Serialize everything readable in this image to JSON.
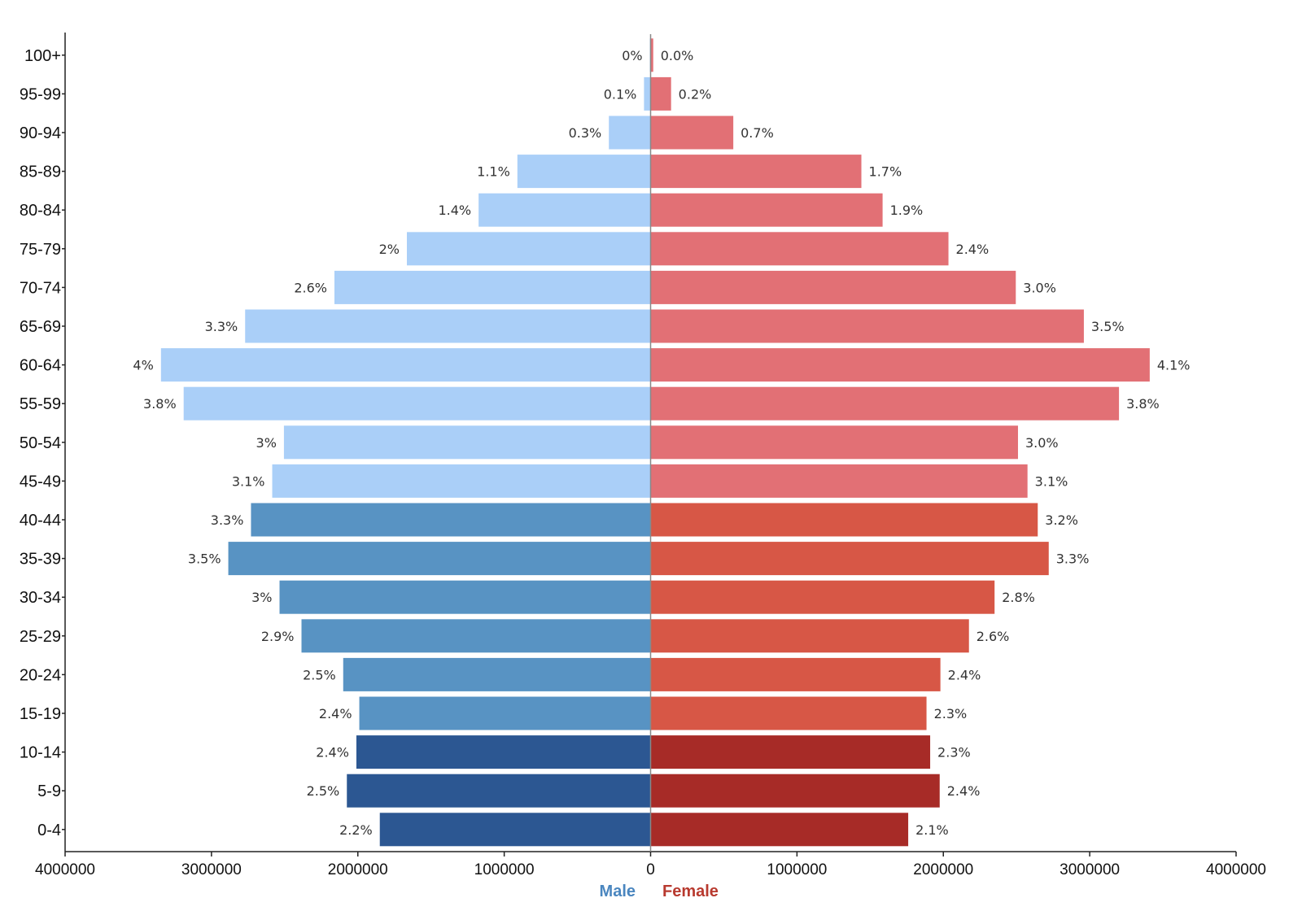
{
  "chart_data": {
    "type": "bar",
    "orientation": "horizontal",
    "title": "",
    "categories": [
      "100+",
      "95-99",
      "90-94",
      "85-89",
      "80-84",
      "75-79",
      "70-74",
      "65-69",
      "60-64",
      "55-59",
      "50-54",
      "45-49",
      "40-44",
      "35-39",
      "30-34",
      "25-29",
      "20-24",
      "15-19",
      "10-14",
      "5-9",
      "0-4"
    ],
    "xlim": [
      -4000000,
      4000000
    ],
    "x_ticks": [
      "4000000",
      "3000000",
      "2000000",
      "1000000",
      "0",
      "1000000",
      "2000000",
      "3000000",
      "4000000"
    ],
    "legend": [
      {
        "name": "Male",
        "color": "#4a86bf"
      },
      {
        "name": "Female",
        "color": "#b83a2f"
      }
    ],
    "series": [
      {
        "name": "Male",
        "values": [
          5000,
          45000,
          285000,
          910000,
          1175000,
          1665000,
          2160000,
          2770000,
          3345000,
          3190000,
          2505000,
          2585000,
          2730000,
          2885000,
          2535000,
          2385000,
          2100000,
          1990000,
          2010000,
          2075000,
          1850000
        ],
        "labels": [
          "0%",
          "0.1%",
          "0.3%",
          "1.1%",
          "1.4%",
          "2%",
          "2.6%",
          "3.3%",
          "4%",
          "3.8%",
          "3%",
          "3.1%",
          "3.3%",
          "3.5%",
          "3%",
          "2.9%",
          "2.5%",
          "2.4%",
          "2.4%",
          "2.5%",
          "2.2%"
        ],
        "colors": [
          "#aacff8",
          "#aacff8",
          "#aacff8",
          "#aacff8",
          "#aacff8",
          "#aacff8",
          "#aacff8",
          "#aacff8",
          "#aacff8",
          "#aacff8",
          "#aacff8",
          "#aacff8",
          "#5893c3",
          "#5893c3",
          "#5893c3",
          "#5893c3",
          "#5893c3",
          "#5893c3",
          "#2c5792",
          "#2c5792",
          "#2c5792"
        ]
      },
      {
        "name": "Female",
        "values": [
          18000,
          140000,
          565000,
          1440000,
          1585000,
          2035000,
          2495000,
          2960000,
          3410000,
          3200000,
          2510000,
          2575000,
          2645000,
          2720000,
          2350000,
          2175000,
          1980000,
          1885000,
          1910000,
          1975000,
          1760000
        ],
        "labels": [
          "0.0%",
          "0.2%",
          "0.7%",
          "1.7%",
          "1.9%",
          "2.4%",
          "3.0%",
          "3.5%",
          "4.1%",
          "3.8%",
          "3.0%",
          "3.1%",
          "3.2%",
          "3.3%",
          "2.8%",
          "2.6%",
          "2.4%",
          "2.3%",
          "2.3%",
          "2.4%",
          "2.1%"
        ],
        "colors": [
          "#e27075",
          "#e27075",
          "#e27075",
          "#e27075",
          "#e27075",
          "#e27075",
          "#e27075",
          "#e27075",
          "#e27075",
          "#e27075",
          "#e27075",
          "#e27075",
          "#d75746",
          "#d75746",
          "#d75746",
          "#d75746",
          "#d75746",
          "#d75746",
          "#a72b27",
          "#a72b27",
          "#a72b27"
        ]
      }
    ]
  }
}
